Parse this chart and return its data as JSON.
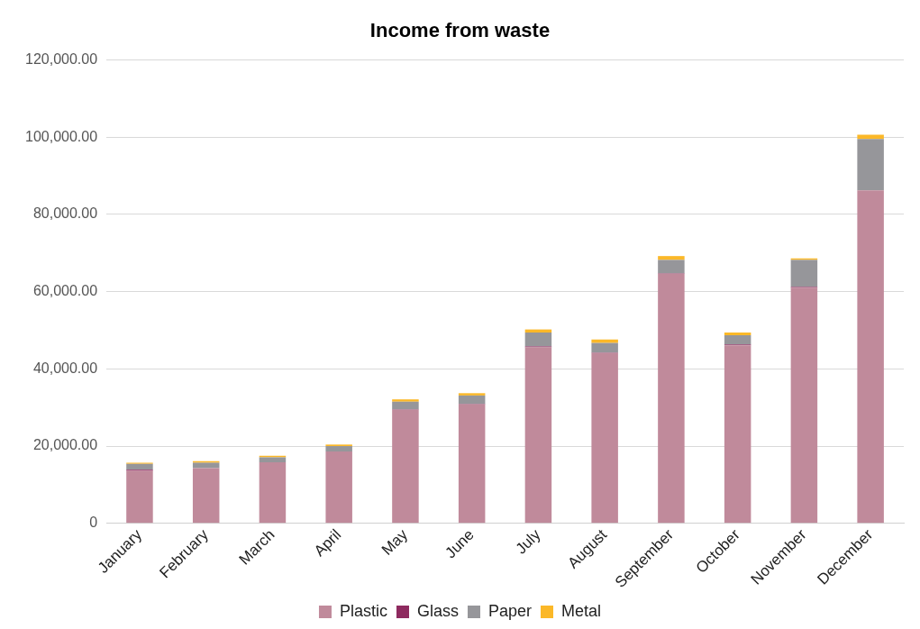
{
  "chart_data": {
    "type": "bar",
    "title": "Income from waste",
    "stacked": true,
    "grid": "y",
    "legend": "bottom",
    "categories": [
      "January",
      "February",
      "March",
      "April",
      "May",
      "June",
      "July",
      "August",
      "September",
      "October",
      "November",
      "December"
    ],
    "ylim": [
      0,
      120000
    ],
    "yticks": [
      0,
      {
        "value": 20000,
        "label": "20,000.00"
      },
      {
        "value": 40000,
        "label": "40,000.00"
      },
      {
        "value": 60000,
        "label": "60,000.00"
      },
      {
        "value": 80000,
        "label": "80,000.00"
      },
      {
        "value": 100000,
        "label": "100,000.00"
      },
      {
        "value": 120000,
        "label": "120,000.00"
      }
    ],
    "series": [
      {
        "name": "Plastic",
        "color": "#c08a9b",
        "values": [
          13600,
          14300,
          15800,
          18600,
          29400,
          30800,
          45600,
          44100,
          64600,
          46100,
          61000,
          86200
        ]
      },
      {
        "name": "Glass",
        "color": "#8e2a5f",
        "values": [
          300,
          null,
          null,
          null,
          100,
          100,
          200,
          100,
          100,
          200,
          200,
          null
        ]
      },
      {
        "name": "Paper",
        "color": "#96969a",
        "values": [
          1500,
          1400,
          1300,
          1400,
          2000,
          2200,
          3600,
          2500,
          3500,
          2400,
          7000,
          13300
        ]
      },
      {
        "name": "Metal",
        "color": "#fbb828",
        "values": [
          300,
          400,
          400,
          400,
          600,
          600,
          800,
          900,
          1000,
          700,
          400,
          1100
        ]
      }
    ]
  }
}
